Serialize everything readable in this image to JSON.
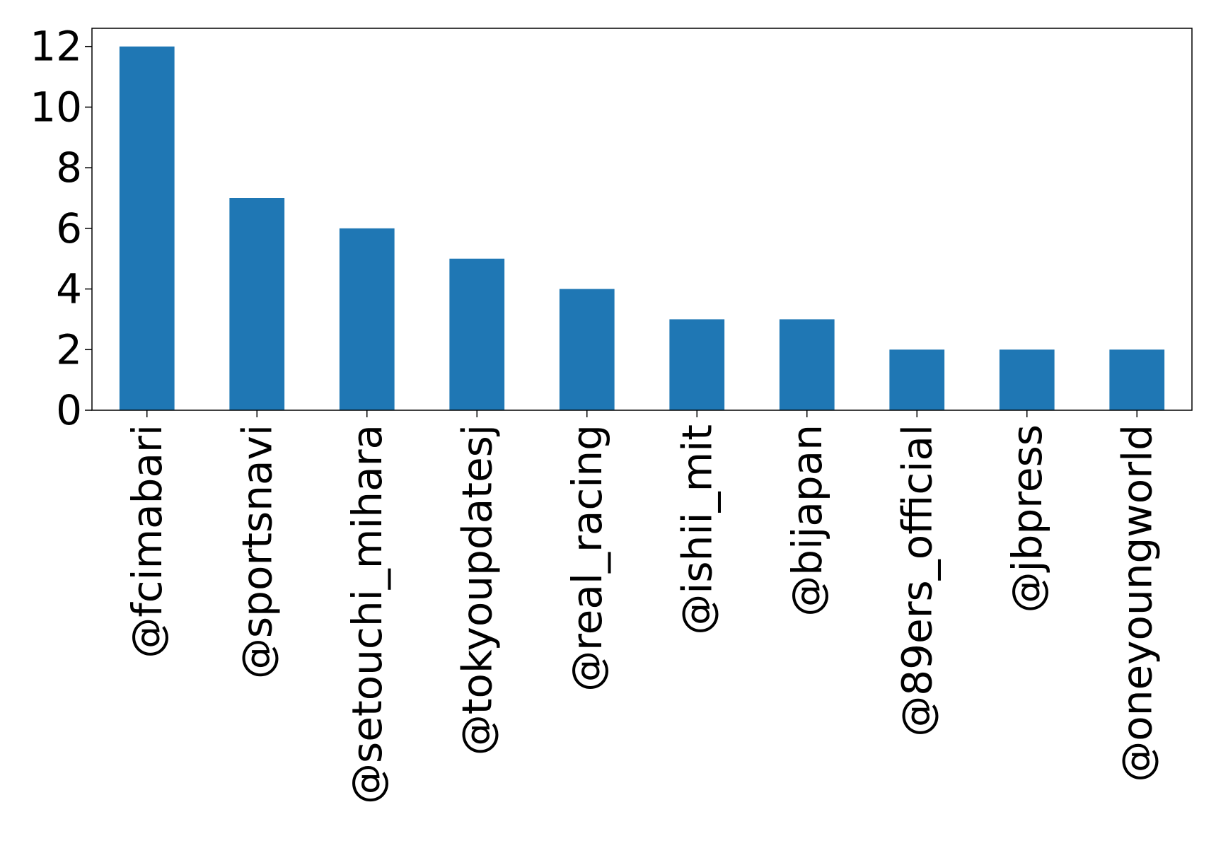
{
  "chart_data": {
    "type": "bar",
    "title": "",
    "xlabel": "",
    "ylabel": "",
    "categories": [
      "@fcimabari",
      "@sportsnavi",
      "@setouchi_mihara",
      "@tokyoupdatesj",
      "@real_racing",
      "@ishii_mit",
      "@bijapan",
      "@89ers_official",
      "@jbpress",
      "@oneyoungworld"
    ],
    "values": [
      12,
      7,
      6,
      5,
      4,
      3,
      3,
      2,
      2,
      2
    ],
    "ylim": [
      0,
      12.6
    ],
    "yticks": [
      0,
      2,
      4,
      6,
      8,
      10,
      12
    ],
    "bar_color": "#1f77b4",
    "grid": false,
    "legend": "none"
  }
}
